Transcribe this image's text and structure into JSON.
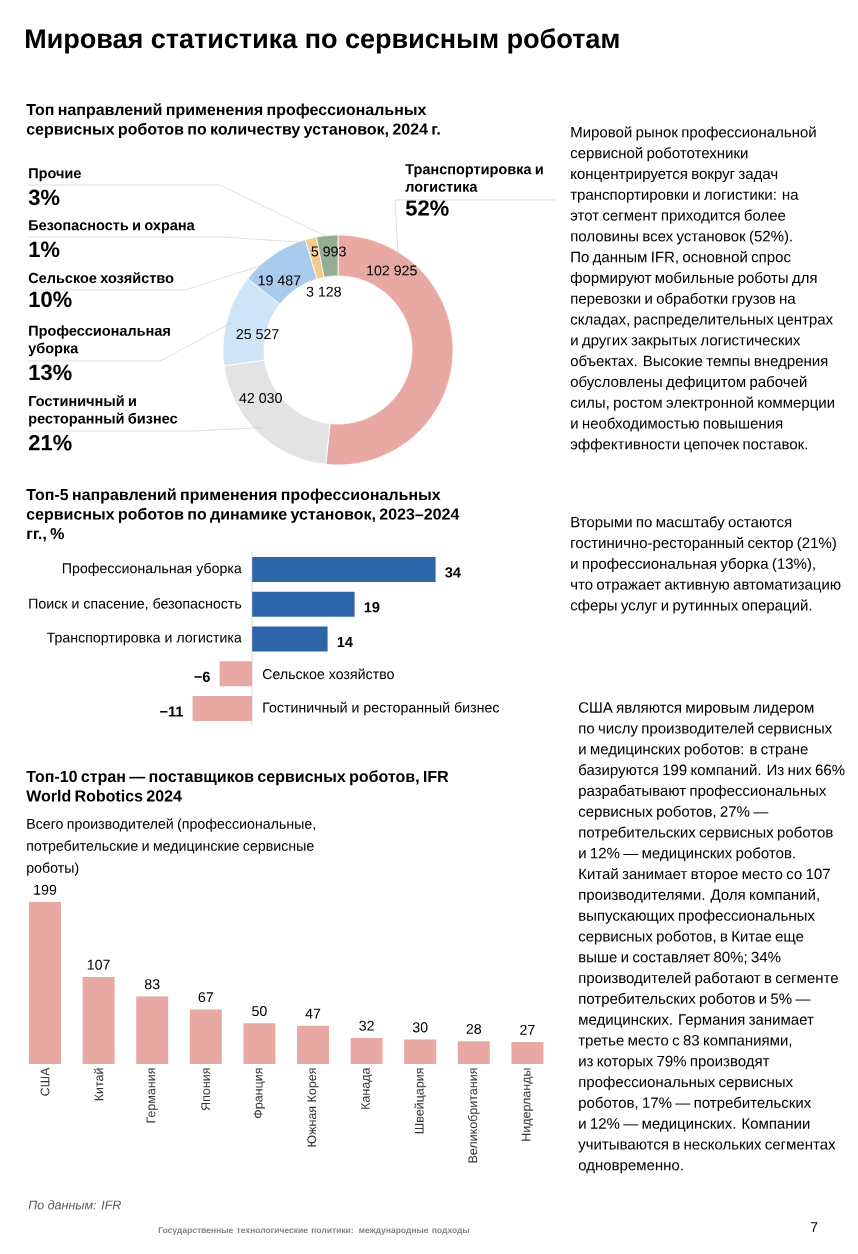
{
  "chart_data": [
    {
      "type": "other",
      "title": "Мировая статистика по сервисным роботам",
      "annotations": [
        "Мировой рынок профессиональной сервисной робототехники концентрируется вокруг задач транспортировки и логистики: на этот сегмент приходится более половины всех установок (52%). По данным IFR, основной спрос формируют мобильные роботы для перевозки и обработки грузов на складах, распределительных центрах и других закрытых логистических объектах. Высокие темпы внедрения обусловлены дефицитом рабочей силы, ростом электронной коммерции и необходимостью повышения эффективности цепочек поставок.",
        "Вторыми по масштабу остаются гостинично-ресторанный сектор (21%) и профессиональная уборка (13%), что отражает активную автоматизацию сферы услуг и рутинных операций.",
        "США являются мировым лидером по числу производителей сервисных и медицинских роботов: в стране базируются 199 компаний. Из них 66% разрабатывают профессиональных сервисных роботов, 27% — потребительских сервисных роботов и 12% — медицинских роботов. Китай занимает второе место со 107 производителями. Доля компаний, выпускающих профессиональных сервисных роботов, в Китае еще выше и составляет 80%; 34% производителей работают в сегменте потребительских роботов и 5% — медицинских. Германия занимает третье место с 83 компаниями, из которых 79% производят профессиональных сервисных роботов, 17% — потребительских и 12% — медицинских. Компании учитываются в нескольких сегментах одновременно.",
        "Государственные технологические политики: международные подходы",
        "7"
      ]
    },
    {
      "type": "donut",
      "title": "Топ направлений применения профессиональных сервисных роботов по количеству установок, 2024 г.",
      "categories": [
        "Транспортировка и логистика",
        "Гостиничный и ресторанный бизнес",
        "Профессиональная уборка",
        "Сельское хозяйство",
        "Безопасность и охрана",
        "Прочие"
      ],
      "values": [
        102925,
        42030,
        25527,
        19487,
        3128,
        5993
      ],
      "value_labels": [
        "102 925",
        "42 030",
        "25 527",
        "19 487",
        "3 128",
        "5 993"
      ],
      "colors": [
        "#e8a9a4",
        "#e3e3e3",
        "#cfe4f7",
        "#a9cbee",
        "#f5c98c",
        "#95ad92"
      ],
      "annotations": [
        "52%",
        "21%",
        "13%",
        "10%",
        "1%",
        "3%"
      ]
    },
    {
      "type": "bar",
      "orientation": "horizontal",
      "title": "Топ-5 направлений применения профессиональных сервисных роботов по динамике установок, 2023–2024 гг., %",
      "categories": [
        "Профессиональная уборка",
        "Поиск и спасение, безопасность",
        "Транспортировка и логистика",
        "Сельское хозяйство",
        "Гостиничный и ресторанный бизнес"
      ],
      "values": [
        34,
        19,
        14,
        -6,
        -11
      ],
      "value_labels": [
        "34",
        "19",
        "14",
        "−6",
        "−11"
      ],
      "colors": [
        "#2e65a8",
        "#2e65a8",
        "#2e65a8",
        "#e8a9a4",
        "#e8a9a4"
      ]
    },
    {
      "type": "bar",
      "title": "Топ-10 стран — поставщиков сервисных роботов, IFR World Robotics 2024",
      "subtitle": "Всего производителей (профессиональные, потребительские и медицинские сервисные роботы)",
      "categories": [
        "США",
        "Китай",
        "Германия",
        "Япония",
        "Франция",
        "Южная Корея",
        "Канада",
        "Швейцария",
        "Великобритания",
        "Нидерланды"
      ],
      "values": [
        199,
        107,
        83,
        67,
        50,
        47,
        32,
        30,
        28,
        27
      ],
      "color": "#e8a9a4",
      "data_labels": true,
      "annotations": [
        "По данным: IFR"
      ]
    }
  ]
}
